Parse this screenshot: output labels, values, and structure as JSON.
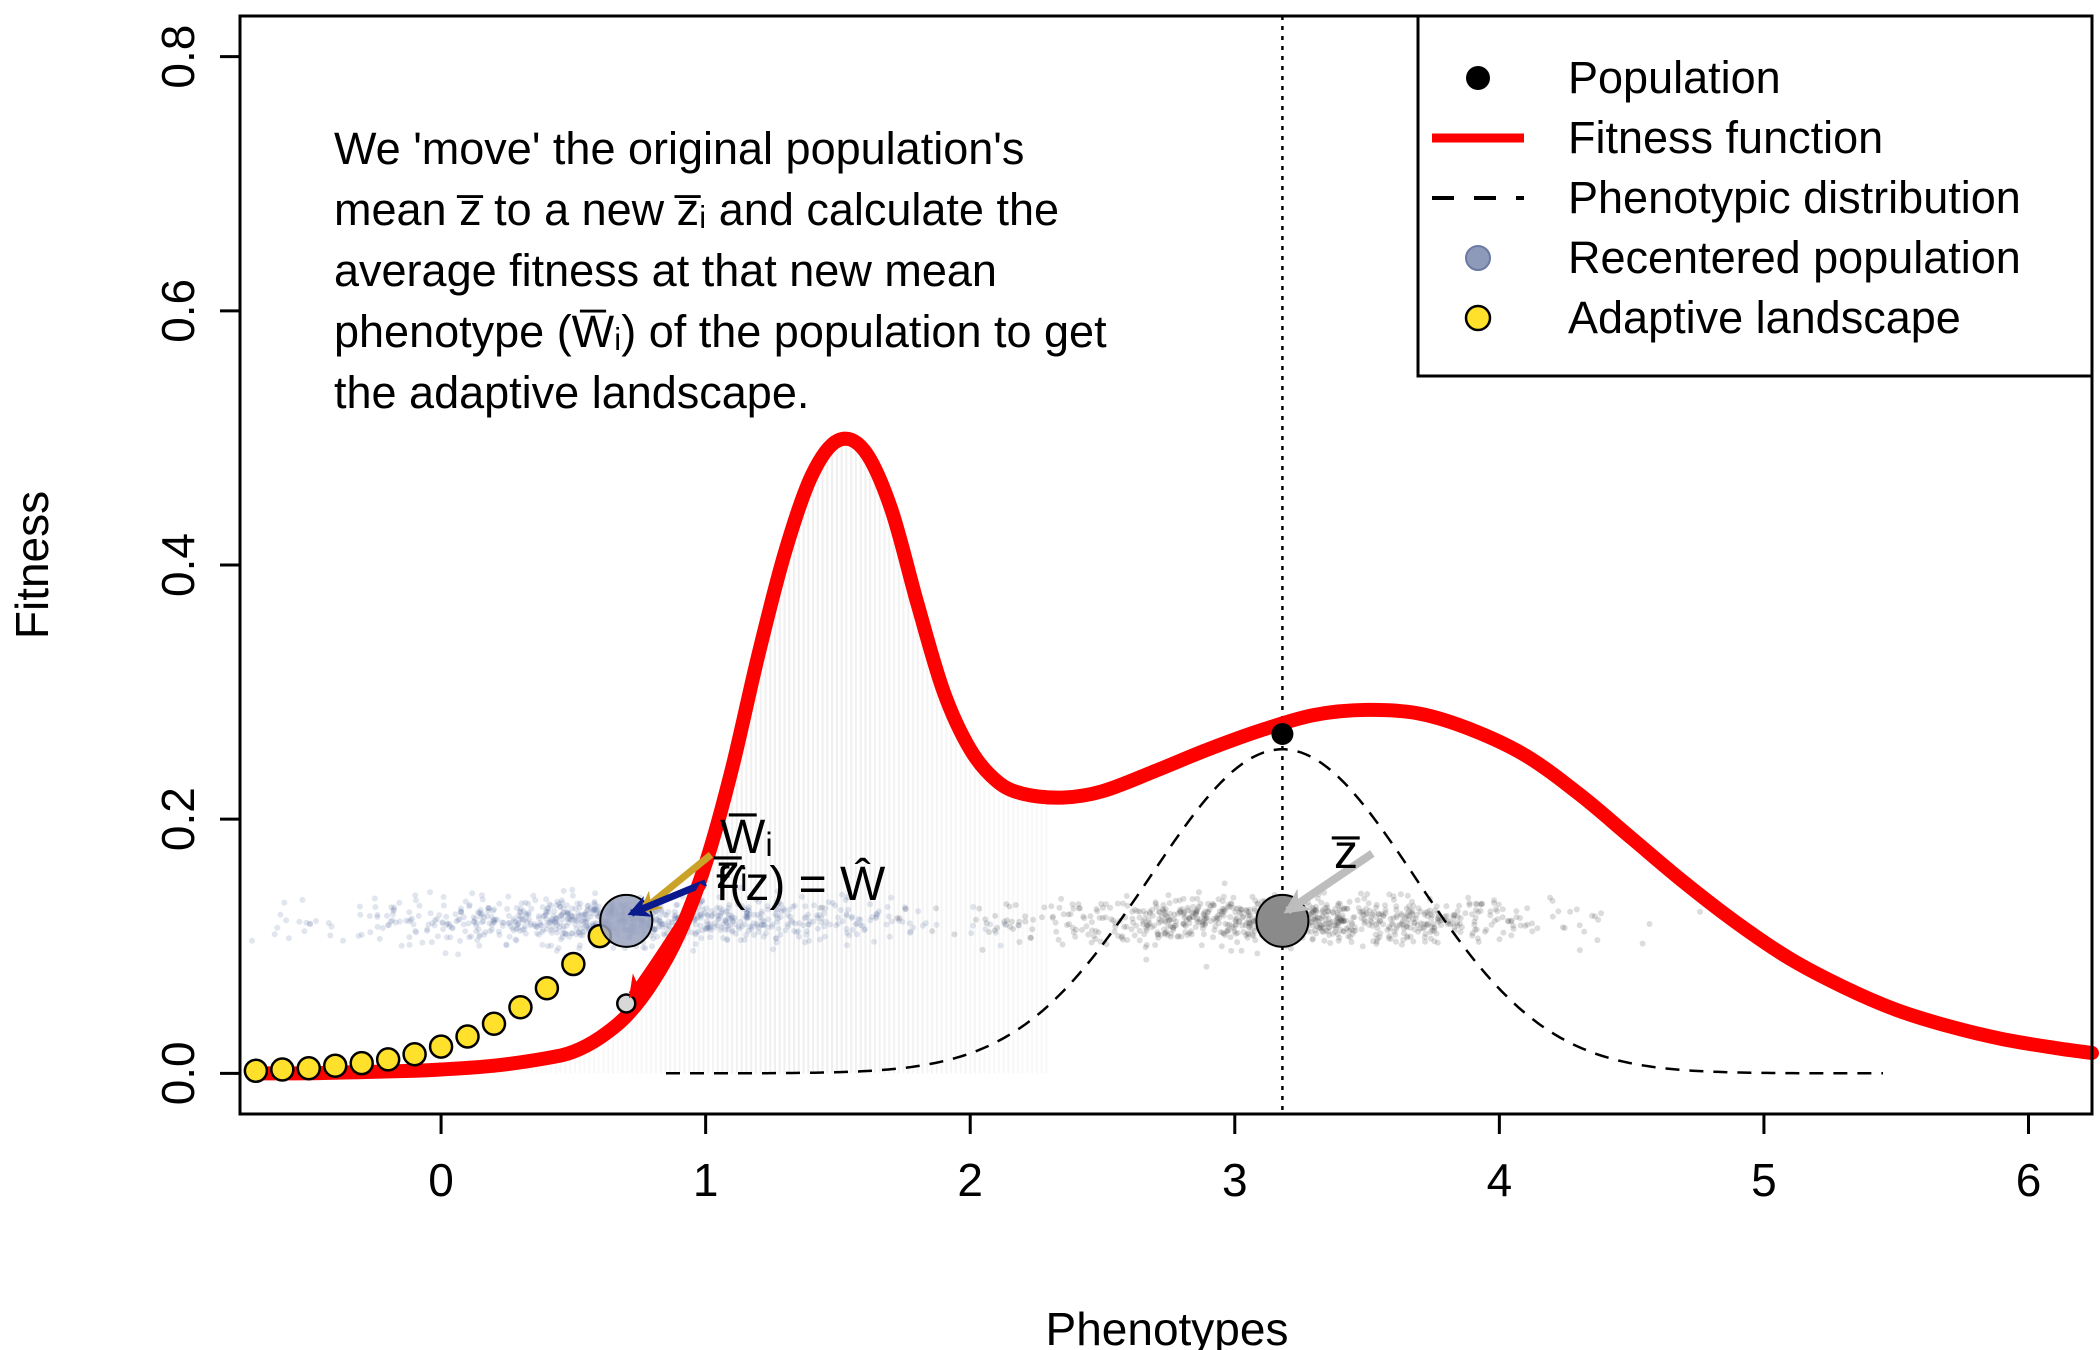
{
  "chart_data": {
    "type": "line",
    "xlabel": "Phenotypes",
    "ylabel": "Fitness",
    "xlim": [
      -0.76,
      6.24
    ],
    "ylim": [
      -0.032,
      0.832
    ],
    "x_ticks": [
      "0",
      "1",
      "2",
      "3",
      "4",
      "5",
      "6"
    ],
    "y_ticks": [
      "0.0",
      "0.2",
      "0.4",
      "0.6",
      "0.8"
    ],
    "legend": {
      "position": "top-right",
      "items": [
        {
          "label": "Population",
          "kind": "point",
          "color": "#000000"
        },
        {
          "label": "Fitness function",
          "kind": "line",
          "color": "#ff0000"
        },
        {
          "label": "Phenotypic distribution",
          "kind": "dashed",
          "color": "#000000"
        },
        {
          "label": "Recentered population",
          "kind": "point",
          "color": "#8e9ab9"
        },
        {
          "label": "Adaptive landscape",
          "kind": "point",
          "color": "#f5e12c"
        }
      ]
    },
    "annotation": {
      "lines": [
        "We 'move' the original population's",
        "mean z̅ to a new z̅ᵢ and calculate the",
        "average fitness at that new mean",
        "phenotype (W̅ᵢ) of the population to get",
        "the adaptive landscape."
      ]
    },
    "labels": {
      "zbar": "z̅",
      "wbar_i": "W̅ᵢ",
      "zbar_i": "z̅ᵢ",
      "f_eq": "f(z) = Ŵ"
    },
    "population_mean": 3.18,
    "population_fitness": 0.267,
    "recentered_mean": 0.7,
    "recentered_fitness": 0.055,
    "point_cloud_y": 0.12,
    "fitness_curve": [
      [
        -0.7,
        0.0
      ],
      [
        -0.5,
        0.0
      ],
      [
        -0.3,
        0.001
      ],
      [
        -0.1,
        0.002
      ],
      [
        0.0,
        0.003
      ],
      [
        0.2,
        0.006
      ],
      [
        0.4,
        0.012
      ],
      [
        0.5,
        0.017
      ],
      [
        0.6,
        0.028
      ],
      [
        0.7,
        0.045
      ],
      [
        0.8,
        0.072
      ],
      [
        0.9,
        0.11
      ],
      [
        1.0,
        0.165
      ],
      [
        1.1,
        0.24
      ],
      [
        1.2,
        0.33
      ],
      [
        1.3,
        0.41
      ],
      [
        1.4,
        0.47
      ],
      [
        1.5,
        0.498
      ],
      [
        1.6,
        0.49
      ],
      [
        1.7,
        0.445
      ],
      [
        1.8,
        0.37
      ],
      [
        1.9,
        0.3
      ],
      [
        2.0,
        0.255
      ],
      [
        2.1,
        0.23
      ],
      [
        2.2,
        0.22
      ],
      [
        2.35,
        0.217
      ],
      [
        2.5,
        0.222
      ],
      [
        2.7,
        0.238
      ],
      [
        2.9,
        0.255
      ],
      [
        3.1,
        0.27
      ],
      [
        3.3,
        0.282
      ],
      [
        3.5,
        0.286
      ],
      [
        3.7,
        0.283
      ],
      [
        3.9,
        0.27
      ],
      [
        4.1,
        0.25
      ],
      [
        4.3,
        0.22
      ],
      [
        4.5,
        0.185
      ],
      [
        4.7,
        0.15
      ],
      [
        4.9,
        0.118
      ],
      [
        5.1,
        0.09
      ],
      [
        5.3,
        0.068
      ],
      [
        5.5,
        0.05
      ],
      [
        5.7,
        0.037
      ],
      [
        5.9,
        0.027
      ],
      [
        6.1,
        0.02
      ],
      [
        6.24,
        0.016
      ]
    ],
    "phenotypic_distribution": {
      "mean": 3.18,
      "sd": 0.5,
      "peak": 0.255,
      "x_range": [
        0.85,
        5.45
      ]
    },
    "adaptive_landscape_points": [
      [
        -0.7,
        0.002
      ],
      [
        -0.6,
        0.003
      ],
      [
        -0.5,
        0.004
      ],
      [
        -0.4,
        0.006
      ],
      [
        -0.3,
        0.008
      ],
      [
        -0.2,
        0.011
      ],
      [
        -0.1,
        0.015
      ],
      [
        0.0,
        0.021
      ],
      [
        0.1,
        0.029
      ],
      [
        0.2,
        0.039
      ],
      [
        0.3,
        0.052
      ],
      [
        0.4,
        0.067
      ],
      [
        0.5,
        0.086
      ],
      [
        0.6,
        0.108
      ]
    ],
    "colors": {
      "fitness": "#ff0000",
      "landscape_fill": "#ffe02a",
      "recentered": "#5b6fa0",
      "original": "#3c3c3c",
      "gold_arrow": "#c9a227",
      "blue_arrow": "#0a1a8c",
      "grey_arrow": "#bdbdbd"
    }
  }
}
